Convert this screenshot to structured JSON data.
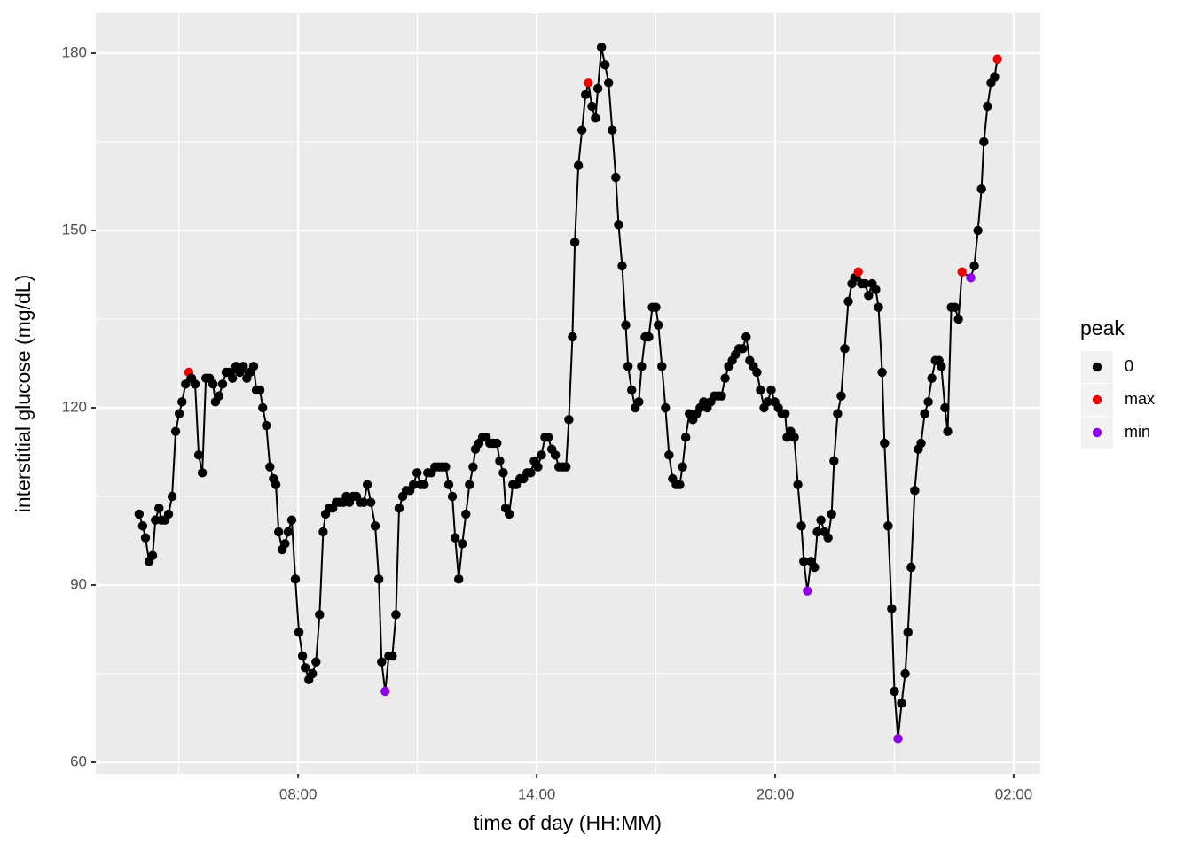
{
  "chart_data": {
    "type": "line",
    "x_label": "time of day (HH:MM)",
    "y_label": "interstitial glucose (mg/dL)",
    "xlim": [
      2.91,
      26.67
    ],
    "ylim": [
      58.05,
      186.75
    ],
    "xticks": [
      {
        "value": 8,
        "label": "08:00"
      },
      {
        "value": 14,
        "label": "14:00"
      },
      {
        "value": 20,
        "label": "20:00"
      },
      {
        "value": 26,
        "label": "02:00"
      }
    ],
    "yticks": [
      60,
      90,
      120,
      150,
      180
    ],
    "grid": true,
    "line_color": "#000000",
    "legend": {
      "title": "peak",
      "position": "right",
      "items": [
        {
          "name": "0",
          "color": "#000000"
        },
        {
          "name": "max",
          "color": "#ee0000"
        },
        {
          "name": "min",
          "color": "#8f00e6"
        }
      ]
    },
    "x": [
      4.0,
      4.09,
      4.16,
      4.25,
      4.34,
      4.41,
      4.5,
      4.56,
      4.65,
      4.74,
      4.83,
      4.92,
      5.01,
      5.08,
      5.17,
      5.25,
      5.32,
      5.41,
      5.5,
      5.59,
      5.68,
      5.77,
      5.86,
      5.92,
      6.01,
      6.1,
      6.19,
      6.28,
      6.35,
      6.44,
      6.53,
      6.62,
      6.71,
      6.79,
      6.88,
      6.95,
      7.04,
      7.11,
      7.2,
      7.29,
      7.38,
      7.44,
      7.51,
      7.6,
      7.67,
      7.75,
      7.84,
      7.93,
      8.02,
      8.11,
      8.18,
      8.27,
      8.36,
      8.45,
      8.54,
      8.63,
      8.69,
      8.78,
      8.87,
      8.96,
      9.05,
      9.14,
      9.21,
      9.29,
      9.38,
      9.47,
      9.56,
      9.65,
      9.74,
      9.83,
      9.94,
      10.03,
      10.1,
      10.19,
      10.28,
      10.37,
      10.46,
      10.54,
      10.63,
      10.72,
      10.81,
      10.9,
      10.99,
      11.08,
      11.17,
      11.26,
      11.35,
      11.44,
      11.53,
      11.62,
      11.71,
      11.79,
      11.88,
      11.95,
      12.04,
      12.13,
      12.22,
      12.31,
      12.4,
      12.46,
      12.55,
      12.64,
      12.73,
      12.82,
      12.91,
      13.0,
      13.07,
      13.16,
      13.22,
      13.31,
      13.4,
      13.49,
      13.58,
      13.67,
      13.76,
      13.85,
      13.94,
      14.03,
      14.12,
      14.21,
      14.29,
      14.38,
      14.47,
      14.56,
      14.65,
      14.74,
      14.81,
      14.9,
      14.96,
      15.05,
      15.14,
      15.23,
      15.3,
      15.39,
      15.48,
      15.54,
      15.63,
      15.72,
      15.81,
      15.9,
      15.99,
      16.06,
      16.15,
      16.24,
      16.3,
      16.39,
      16.48,
      16.57,
      16.64,
      16.73,
      16.82,
      16.91,
      17.0,
      17.06,
      17.15,
      17.24,
      17.33,
      17.42,
      17.51,
      17.6,
      17.67,
      17.75,
      17.84,
      17.93,
      18.02,
      18.11,
      18.2,
      18.29,
      18.38,
      18.47,
      18.56,
      18.65,
      18.74,
      18.83,
      18.92,
      19.0,
      19.09,
      19.18,
      19.27,
      19.36,
      19.45,
      19.54,
      19.63,
      19.72,
      19.81,
      19.9,
      19.99,
      20.08,
      20.17,
      20.25,
      20.3,
      20.39,
      20.48,
      20.57,
      20.66,
      20.72,
      20.81,
      20.9,
      20.99,
      21.06,
      21.15,
      21.24,
      21.33,
      21.42,
      21.48,
      21.57,
      21.66,
      21.75,
      21.84,
      21.93,
      22.0,
      22.09,
      22.17,
      22.26,
      22.35,
      22.44,
      22.53,
      22.6,
      22.69,
      22.75,
      22.84,
      22.93,
      23.0,
      23.09,
      23.18,
      23.27,
      23.34,
      23.42,
      23.51,
      23.6,
      23.67,
      23.76,
      23.85,
      23.94,
      24.03,
      24.12,
      24.18,
      24.27,
      24.34,
      24.43,
      24.52,
      24.61,
      24.7,
      24.92,
      25.01,
      25.1,
      25.19,
      25.25,
      25.34,
      25.43,
      25.52,
      25.59
    ],
    "values": [
      102,
      100,
      98,
      94,
      95,
      101,
      103,
      101,
      101,
      102,
      105,
      116,
      119,
      121,
      124,
      126,
      125,
      124,
      112,
      109,
      125,
      125,
      124,
      121,
      122,
      124,
      126,
      126,
      125,
      127,
      126,
      127,
      125,
      126,
      127,
      123,
      123,
      120,
      117,
      110,
      108,
      107,
      99,
      96,
      97,
      99,
      101,
      91,
      82,
      78,
      76,
      74,
      75,
      77,
      85,
      99,
      102,
      103,
      103,
      104,
      104,
      104,
      105,
      104,
      105,
      105,
      104,
      104,
      107,
      104,
      100,
      91,
      77,
      72,
      78,
      78,
      85,
      103,
      105,
      106,
      106,
      107,
      109,
      107,
      107,
      109,
      109,
      110,
      110,
      110,
      110,
      107,
      105,
      98,
      91,
      97,
      102,
      107,
      110,
      113,
      114,
      115,
      115,
      114,
      114,
      114,
      111,
      109,
      103,
      102,
      107,
      107,
      108,
      108,
      109,
      109,
      111,
      110,
      112,
      115,
      115,
      113,
      112,
      110,
      110,
      110,
      118,
      132,
      148,
      161,
      167,
      173,
      175,
      171,
      169,
      174,
      181,
      178,
      175,
      167,
      159,
      151,
      144,
      134,
      127,
      123,
      120,
      121,
      127,
      132,
      132,
      137,
      137,
      134,
      127,
      120,
      112,
      108,
      107,
      107,
      110,
      115,
      119,
      118,
      119,
      120,
      121,
      120,
      121,
      122,
      122,
      122,
      125,
      127,
      128,
      129,
      130,
      130,
      132,
      128,
      127,
      126,
      123,
      120,
      121,
      123,
      121,
      120,
      119,
      119,
      115,
      116,
      115,
      107,
      100,
      94,
      89,
      94,
      93,
      99,
      101,
      99,
      98,
      102,
      111,
      119,
      122,
      130,
      138,
      141,
      142,
      143,
      141,
      141,
      139,
      141,
      140,
      137,
      126,
      114,
      100,
      86,
      72,
      64,
      70,
      75,
      82,
      93,
      106,
      113,
      114,
      119,
      121,
      125,
      128,
      128,
      127,
      120,
      116,
      137,
      137,
      135,
      143,
      142,
      144,
      150,
      157,
      165,
      171,
      175,
      176,
      179
    ],
    "peak": [
      "0",
      "0",
      "0",
      "0",
      "0",
      "0",
      "0",
      "0",
      "0",
      "0",
      "0",
      "0",
      "0",
      "0",
      "0",
      "max",
      "0",
      "0",
      "0",
      "0",
      "0",
      "0",
      "0",
      "0",
      "0",
      "0",
      "0",
      "0",
      "0",
      "0",
      "0",
      "0",
      "0",
      "0",
      "0",
      "0",
      "0",
      "0",
      "0",
      "0",
      "0",
      "0",
      "0",
      "0",
      "0",
      "0",
      "0",
      "0",
      "0",
      "0",
      "0",
      "0",
      "0",
      "0",
      "0",
      "0",
      "0",
      "0",
      "0",
      "0",
      "0",
      "0",
      "0",
      "0",
      "0",
      "0",
      "0",
      "0",
      "0",
      "0",
      "0",
      "0",
      "0",
      "min",
      "0",
      "0",
      "0",
      "0",
      "0",
      "0",
      "0",
      "0",
      "0",
      "0",
      "0",
      "0",
      "0",
      "0",
      "0",
      "0",
      "0",
      "0",
      "0",
      "0",
      "0",
      "0",
      "0",
      "0",
      "0",
      "0",
      "0",
      "0",
      "0",
      "0",
      "0",
      "0",
      "0",
      "0",
      "0",
      "0",
      "0",
      "0",
      "0",
      "0",
      "0",
      "0",
      "0",
      "0",
      "0",
      "0",
      "0",
      "0",
      "0",
      "0",
      "0",
      "0",
      "0",
      "0",
      "0",
      "0",
      "0",
      "0",
      "max",
      "0",
      "0",
      "0",
      "0",
      "0",
      "0",
      "0",
      "0",
      "0",
      "0",
      "0",
      "0",
      "0",
      "0",
      "0",
      "0",
      "0",
      "0",
      "0",
      "0",
      "0",
      "0",
      "0",
      "0",
      "0",
      "0",
      "0",
      "0",
      "0",
      "0",
      "0",
      "0",
      "0",
      "0",
      "0",
      "0",
      "0",
      "0",
      "0",
      "0",
      "0",
      "0",
      "0",
      "0",
      "0",
      "0",
      "0",
      "0",
      "0",
      "0",
      "0",
      "0",
      "0",
      "0",
      "0",
      "0",
      "0",
      "0",
      "0",
      "0",
      "0",
      "0",
      "0",
      "min",
      "0",
      "0",
      "0",
      "0",
      "0",
      "0",
      "0",
      "0",
      "0",
      "0",
      "0",
      "0",
      "0",
      "0",
      "max",
      "0",
      "0",
      "0",
      "0",
      "0",
      "0",
      "0",
      "0",
      "0",
      "0",
      "0",
      "min",
      "0",
      "0",
      "0",
      "0",
      "0",
      "0",
      "0",
      "0",
      "0",
      "0",
      "0",
      "0",
      "0",
      "0",
      "0",
      "0",
      "0",
      "0",
      "max",
      "min",
      "0",
      "0",
      "0",
      "0",
      "0",
      "0",
      "0",
      "max"
    ]
  }
}
